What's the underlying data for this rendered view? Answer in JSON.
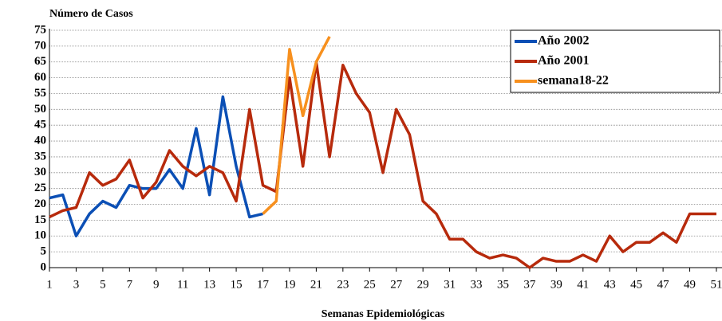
{
  "chart_data": {
    "type": "line",
    "title": "Número de Casos",
    "x_label": "Semanas Epidemiológicas",
    "x": [
      1,
      2,
      3,
      4,
      5,
      6,
      7,
      8,
      9,
      10,
      11,
      12,
      13,
      14,
      15,
      16,
      17,
      18,
      19,
      20,
      21,
      22,
      23,
      24,
      25,
      26,
      27,
      28,
      29,
      30,
      31,
      32,
      33,
      34,
      35,
      36,
      37,
      38,
      39,
      40,
      41,
      42,
      43,
      44,
      45,
      46,
      47,
      48,
      49,
      50,
      51
    ],
    "series": [
      {
        "name": "Año 2002",
        "color": "#0b4fb5",
        "values": [
          22,
          23,
          10,
          17,
          21,
          19,
          26,
          25,
          25,
          31,
          25,
          44,
          23,
          54,
          32,
          16,
          17,
          null,
          null,
          null,
          null,
          null,
          null,
          null,
          null,
          null,
          null,
          null,
          null,
          null,
          null,
          null,
          null,
          null,
          null,
          null,
          null,
          null,
          null,
          null,
          null,
          null,
          null,
          null,
          null,
          null,
          null,
          null,
          null,
          null,
          null
        ]
      },
      {
        "name": "Año 2001",
        "color": "#b72a0c",
        "values": [
          16,
          18,
          19,
          30,
          26,
          28,
          34,
          22,
          27,
          37,
          32,
          29,
          32,
          30,
          21,
          50,
          26,
          24,
          60,
          32,
          65,
          35,
          64,
          55,
          49,
          30,
          50,
          42,
          21,
          17,
          9,
          9,
          5,
          3,
          4,
          3,
          0,
          3,
          2,
          2,
          4,
          2,
          10,
          5,
          8,
          8,
          11,
          8,
          17,
          17,
          17
        ]
      },
      {
        "name": "semana18-22",
        "color": "#f7901e",
        "values": [
          null,
          null,
          null,
          null,
          null,
          null,
          null,
          null,
          null,
          null,
          null,
          null,
          null,
          null,
          null,
          null,
          17,
          21,
          69,
          48,
          65,
          73,
          null,
          null,
          null,
          null,
          null,
          null,
          null,
          null,
          null,
          null,
          null,
          null,
          null,
          null,
          null,
          null,
          null,
          null,
          null,
          null,
          null,
          null,
          null,
          null,
          null,
          null,
          null,
          null,
          null
        ]
      }
    ],
    "xlim": [
      1,
      51
    ],
    "xticks": [
      1,
      3,
      5,
      7,
      9,
      11,
      13,
      15,
      17,
      19,
      21,
      23,
      25,
      27,
      29,
      31,
      33,
      35,
      37,
      39,
      41,
      43,
      45,
      47,
      49,
      51
    ],
    "ylim": [
      0,
      75
    ],
    "yticks": [
      0,
      5,
      10,
      15,
      20,
      25,
      30,
      35,
      40,
      45,
      50,
      55,
      60,
      65,
      70,
      75
    ],
    "grid": true,
    "legend": "upper right"
  }
}
